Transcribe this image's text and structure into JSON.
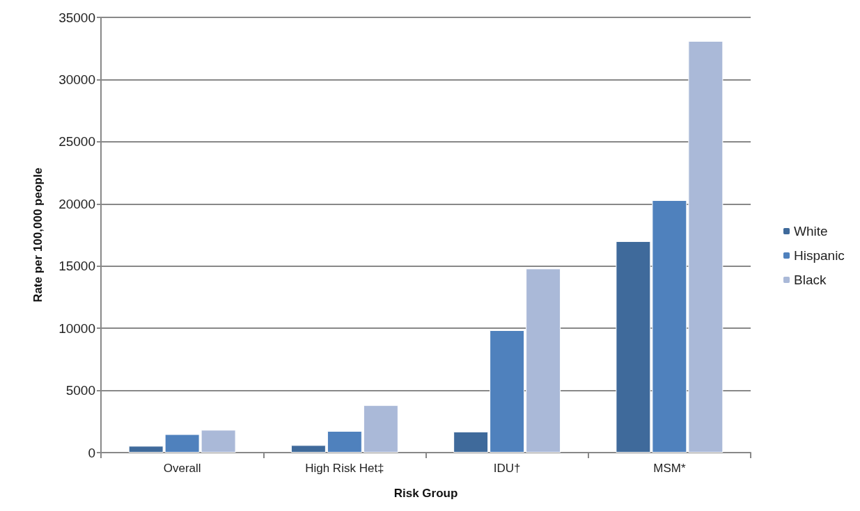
{
  "chart_data": {
    "type": "bar",
    "xlabel": "Risk Group",
    "ylabel": "Rate per 100,000 people",
    "categories": [
      "Overall",
      "High Risk Het‡",
      "IDU†",
      "MSM*"
    ],
    "series": [
      {
        "name": "White",
        "color": "#3f6a9b",
        "values": [
          540,
          600,
          1690,
          17000
        ]
      },
      {
        "name": "Hispanic",
        "color": "#4f81bd",
        "values": [
          1480,
          1740,
          9840,
          20300
        ]
      },
      {
        "name": "Black",
        "color": "#aab9d8",
        "values": [
          1830,
          3820,
          14800,
          33100
        ]
      }
    ],
    "ylim": [
      0,
      35000
    ],
    "yticks": [
      0,
      5000,
      10000,
      15000,
      20000,
      25000,
      30000,
      35000
    ],
    "grid": "y",
    "legend": "right"
  }
}
